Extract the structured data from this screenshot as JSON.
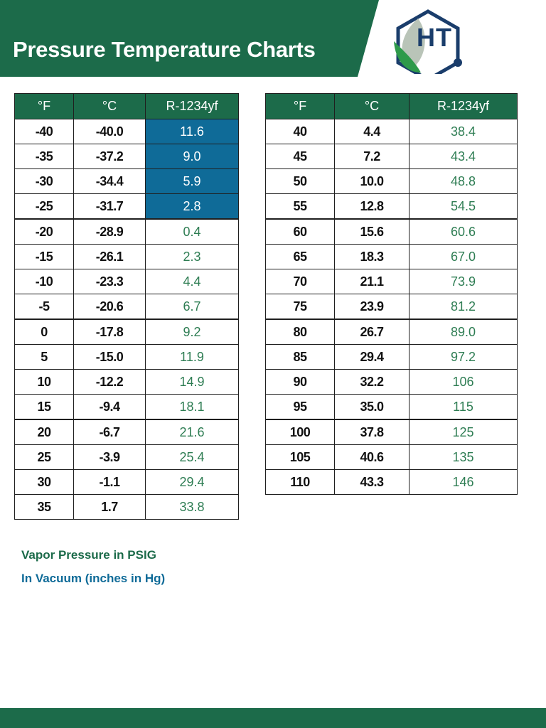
{
  "header": {
    "title": "Pressure Temperature Charts",
    "logo_text": "HT",
    "band_color": "#1c6b4a"
  },
  "table": {
    "columns": [
      "°F",
      "°C",
      "R-1234yf"
    ],
    "left_rows": [
      {
        "f": "-40",
        "c": "-40.0",
        "p": "11.6",
        "vacuum": true
      },
      {
        "f": "-35",
        "c": "-37.2",
        "p": "9.0",
        "vacuum": true
      },
      {
        "f": "-30",
        "c": "-34.4",
        "p": "5.9",
        "vacuum": true
      },
      {
        "f": "-25",
        "c": "-31.7",
        "p": "2.8",
        "vacuum": true
      },
      {
        "f": "-20",
        "c": "-28.9",
        "p": "0.4",
        "vacuum": false
      },
      {
        "f": "-15",
        "c": "-26.1",
        "p": "2.3",
        "vacuum": false
      },
      {
        "f": "-10",
        "c": "-23.3",
        "p": "4.4",
        "vacuum": false
      },
      {
        "f": "-5",
        "c": "-20.6",
        "p": "6.7",
        "vacuum": false
      },
      {
        "f": "0",
        "c": "-17.8",
        "p": "9.2",
        "vacuum": false
      },
      {
        "f": "5",
        "c": "-15.0",
        "p": "11.9",
        "vacuum": false
      },
      {
        "f": "10",
        "c": "-12.2",
        "p": "14.9",
        "vacuum": false
      },
      {
        "f": "15",
        "c": "-9.4",
        "p": "18.1",
        "vacuum": false
      },
      {
        "f": "20",
        "c": "-6.7",
        "p": "21.6",
        "vacuum": false
      },
      {
        "f": "25",
        "c": "-3.9",
        "p": "25.4",
        "vacuum": false
      },
      {
        "f": "30",
        "c": "-1.1",
        "p": "29.4",
        "vacuum": false
      },
      {
        "f": "35",
        "c": "1.7",
        "p": "33.8",
        "vacuum": false
      }
    ],
    "right_rows": [
      {
        "f": "40",
        "c": "4.4",
        "p": "38.4",
        "vacuum": false
      },
      {
        "f": "45",
        "c": "7.2",
        "p": "43.4",
        "vacuum": false
      },
      {
        "f": "50",
        "c": "10.0",
        "p": "48.8",
        "vacuum": false
      },
      {
        "f": "55",
        "c": "12.8",
        "p": "54.5",
        "vacuum": false
      },
      {
        "f": "60",
        "c": "15.6",
        "p": "60.6",
        "vacuum": false
      },
      {
        "f": "65",
        "c": "18.3",
        "p": "67.0",
        "vacuum": false
      },
      {
        "f": "70",
        "c": "21.1",
        "p": "73.9",
        "vacuum": false
      },
      {
        "f": "75",
        "c": "23.9",
        "p": "81.2",
        "vacuum": false
      },
      {
        "f": "80",
        "c": "26.7",
        "p": "89.0",
        "vacuum": false
      },
      {
        "f": "85",
        "c": "29.4",
        "p": "97.2",
        "vacuum": false
      },
      {
        "f": "90",
        "c": "32.2",
        "p": "106",
        "vacuum": false
      },
      {
        "f": "95",
        "c": "35.0",
        "p": "115",
        "vacuum": false
      },
      {
        "f": "100",
        "c": "37.8",
        "p": "125",
        "vacuum": false
      },
      {
        "f": "105",
        "c": "40.6",
        "p": "135",
        "vacuum": false
      },
      {
        "f": "110",
        "c": "43.3",
        "p": "146",
        "vacuum": false
      }
    ]
  },
  "legend": {
    "psig": "Vapor Pressure in PSIG",
    "vacuum": "In Vacuum (inches in Hg)",
    "psig_color": "#1c6b4a",
    "vacuum_color": "#0f6b98"
  }
}
